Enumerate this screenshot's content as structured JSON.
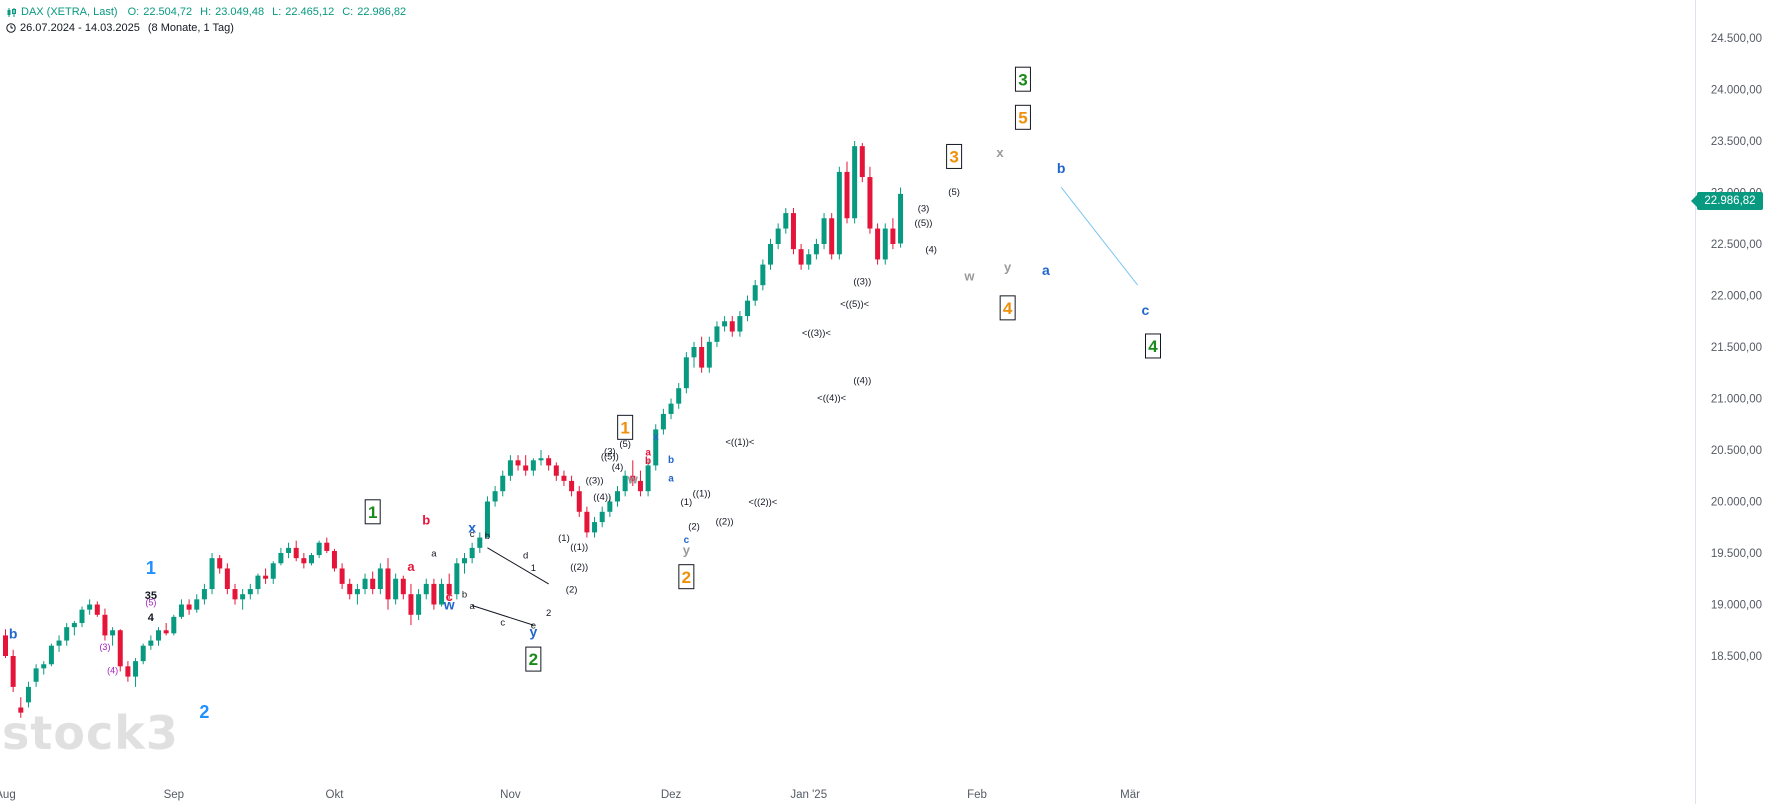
{
  "legend": {
    "symbol": "DAX (XETRA, Last)",
    "open_label": "O:",
    "open": "22.504,72",
    "high_label": "H:",
    "high": "23.049,48",
    "low_label": "L:",
    "low": "22.465,12",
    "close_label": "C:",
    "close": "22.986,82",
    "range": "26.07.2024 - 14.03.2025",
    "span": "(8 Monate, 1 Tag)"
  },
  "watermark": "stock3",
  "current_price_label": "22.986,82",
  "colors": {
    "up": "#089981",
    "down": "#e5153a",
    "green_label": "#1a8a1a",
    "orange_label": "#f0900a",
    "blue_label": "#2266cc",
    "red_label": "#e5153a",
    "grey_label": "#9a9a9a",
    "purple_label": "#a020c0",
    "sky_label": "#1e90ff",
    "projection": "#7cc6f2"
  },
  "chart_data": {
    "type": "candlestick",
    "title": "DAX (XETRA, Last)",
    "ylim": [
      18100,
      24800
    ],
    "xlabels": [
      {
        "label": "Aug",
        "day": 0
      },
      {
        "label": "Sep",
        "day": 22
      },
      {
        "label": "Okt",
        "day": 43
      },
      {
        "label": "Nov",
        "day": 66
      },
      {
        "label": "Dez",
        "day": 87
      },
      {
        "label": "Jan '25",
        "day": 105
      },
      {
        "label": "Feb",
        "day": 127
      },
      {
        "label": "Mär",
        "day": 147
      }
    ],
    "yticks": [
      "18.500,00",
      "19.000,00",
      "19.500,00",
      "20.000,00",
      "20.500,00",
      "21.000,00",
      "21.500,00",
      "22.000,00",
      "22.500,00",
      "23.000,00",
      "23.500,00",
      "24.000,00",
      "24.500,00"
    ],
    "ytick_values": [
      18500,
      19000,
      19500,
      20000,
      20500,
      21000,
      21500,
      22000,
      22500,
      23000,
      23500,
      24000,
      24500
    ],
    "last_close": 22986.82,
    "candles": [
      [
        18700,
        18760,
        18480,
        18500
      ],
      [
        18500,
        18560,
        18150,
        18200
      ],
      [
        18000,
        18100,
        17900,
        17950
      ],
      [
        18050,
        18250,
        18000,
        18200
      ],
      [
        18250,
        18420,
        18200,
        18380
      ],
      [
        18380,
        18450,
        18320,
        18420
      ],
      [
        18420,
        18620,
        18400,
        18600
      ],
      [
        18600,
        18700,
        18540,
        18650
      ],
      [
        18650,
        18820,
        18600,
        18780
      ],
      [
        18780,
        18840,
        18700,
        18820
      ],
      [
        18820,
        18980,
        18780,
        18950
      ],
      [
        18950,
        19050,
        18900,
        19000
      ],
      [
        19000,
        19030,
        18880,
        18900
      ],
      [
        18900,
        18960,
        18650,
        18700
      ],
      [
        18700,
        18780,
        18600,
        18750
      ],
      [
        18750,
        18760,
        18350,
        18400
      ],
      [
        18400,
        18450,
        18250,
        18300
      ],
      [
        18300,
        18480,
        18200,
        18450
      ],
      [
        18450,
        18620,
        18420,
        18600
      ],
      [
        18600,
        18700,
        18560,
        18650
      ],
      [
        18650,
        18780,
        18600,
        18750
      ],
      [
        18750,
        18820,
        18700,
        18720
      ],
      [
        18720,
        18900,
        18700,
        18880
      ],
      [
        18880,
        19050,
        18860,
        19000
      ],
      [
        19000,
        19050,
        18900,
        18950
      ],
      [
        18950,
        19100,
        18920,
        19050
      ],
      [
        19050,
        19200,
        19000,
        19150
      ],
      [
        19150,
        19500,
        19100,
        19450
      ],
      [
        19450,
        19480,
        19300,
        19350
      ],
      [
        19350,
        19400,
        19100,
        19150
      ],
      [
        19150,
        19200,
        19000,
        19050
      ],
      [
        19050,
        19150,
        18950,
        19100
      ],
      [
        19100,
        19200,
        19050,
        19150
      ],
      [
        19150,
        19300,
        19100,
        19280
      ],
      [
        19280,
        19350,
        19200,
        19250
      ],
      [
        19250,
        19420,
        19200,
        19400
      ],
      [
        19400,
        19550,
        19380,
        19500
      ],
      [
        19500,
        19600,
        19450,
        19550
      ],
      [
        19550,
        19620,
        19420,
        19450
      ],
      [
        19450,
        19500,
        19350,
        19400
      ],
      [
        19400,
        19500,
        19380,
        19480
      ],
      [
        19480,
        19620,
        19450,
        19600
      ],
      [
        19600,
        19650,
        19500,
        19520
      ],
      [
        19520,
        19540,
        19320,
        19350
      ],
      [
        19350,
        19400,
        19150,
        19200
      ],
      [
        19200,
        19250,
        19050,
        19100
      ],
      [
        19100,
        19200,
        19000,
        19150
      ],
      [
        19150,
        19300,
        19100,
        19250
      ],
      [
        19250,
        19320,
        19100,
        19150
      ],
      [
        19150,
        19400,
        19100,
        19350
      ],
      [
        19350,
        19450,
        18950,
        19050
      ],
      [
        19050,
        19300,
        19000,
        19250
      ],
      [
        19250,
        19280,
        19050,
        19100
      ],
      [
        19100,
        19200,
        18800,
        18900
      ],
      [
        18900,
        19150,
        18850,
        19100
      ],
      [
        19100,
        19250,
        19050,
        19200
      ],
      [
        19200,
        19250,
        18950,
        19000
      ],
      [
        19000,
        19250,
        18980,
        19200
      ],
      [
        19200,
        19300,
        19050,
        19100
      ],
      [
        19100,
        19450,
        19050,
        19400
      ],
      [
        19400,
        19500,
        19300,
        19450
      ],
      [
        19450,
        19600,
        19400,
        19550
      ],
      [
        19550,
        19700,
        19500,
        19650
      ],
      [
        19650,
        20050,
        19650,
        20000
      ],
      [
        20000,
        20150,
        19950,
        20100
      ],
      [
        20100,
        20300,
        20050,
        20250
      ],
      [
        20250,
        20450,
        20200,
        20400
      ],
      [
        20400,
        20450,
        20300,
        20350
      ],
      [
        20350,
        20450,
        20250,
        20300
      ],
      [
        20300,
        20420,
        20250,
        20400
      ],
      [
        20400,
        20500,
        20350,
        20420
      ],
      [
        20420,
        20450,
        20300,
        20350
      ],
      [
        20350,
        20380,
        20200,
        20250
      ],
      [
        20250,
        20300,
        20150,
        20200
      ],
      [
        20200,
        20250,
        20050,
        20100
      ],
      [
        20100,
        20150,
        19850,
        19900
      ],
      [
        19900,
        19950,
        19650,
        19700
      ],
      [
        19700,
        19850,
        19650,
        19800
      ],
      [
        19800,
        19950,
        19750,
        19900
      ],
      [
        19900,
        20050,
        19850,
        20000
      ],
      [
        20000,
        20150,
        19950,
        20100
      ],
      [
        20100,
        20300,
        20050,
        20250
      ],
      [
        20250,
        20400,
        20150,
        20200
      ],
      [
        20200,
        20300,
        20050,
        20100
      ],
      [
        20100,
        20400,
        20050,
        20350
      ],
      [
        20350,
        20750,
        20300,
        20700
      ],
      [
        20700,
        20900,
        20650,
        20850
      ],
      [
        20850,
        21000,
        20800,
        20950
      ],
      [
        20950,
        21150,
        20900,
        21100
      ],
      [
        21100,
        21450,
        21050,
        21400
      ],
      [
        21400,
        21550,
        21300,
        21500
      ],
      [
        21500,
        21600,
        21250,
        21300
      ],
      [
        21300,
        21600,
        21250,
        21550
      ],
      [
        21550,
        21750,
        21500,
        21700
      ],
      [
        21700,
        21800,
        21650,
        21750
      ],
      [
        21750,
        21800,
        21600,
        21650
      ],
      [
        21650,
        21850,
        21600,
        21800
      ],
      [
        21800,
        22000,
        21750,
        21950
      ],
      [
        21950,
        22150,
        21900,
        22100
      ],
      [
        22100,
        22350,
        22050,
        22300
      ],
      [
        22300,
        22550,
        22250,
        22500
      ],
      [
        22500,
        22700,
        22450,
        22650
      ],
      [
        22650,
        22850,
        22600,
        22800
      ],
      [
        22800,
        22850,
        22400,
        22450
      ],
      [
        22450,
        22500,
        22250,
        22300
      ],
      [
        22300,
        22450,
        22250,
        22400
      ],
      [
        22400,
        22550,
        22350,
        22500
      ],
      [
        22500,
        22800,
        22450,
        22750
      ],
      [
        22750,
        22800,
        22350,
        22400
      ],
      [
        22400,
        23250,
        22350,
        23200
      ],
      [
        23200,
        23300,
        22700,
        22750
      ],
      [
        22750,
        23500,
        22700,
        23450
      ],
      [
        23450,
        23480,
        23100,
        23150
      ],
      [
        23150,
        23250,
        22600,
        22650
      ],
      [
        22650,
        22700,
        22300,
        22350
      ],
      [
        22350,
        22700,
        22300,
        22650
      ],
      [
        22650,
        22750,
        22450,
        22500
      ],
      [
        22505,
        23049,
        22465,
        22987
      ]
    ],
    "annotations": [
      {
        "text": "b",
        "day": 1,
        "price": 18720,
        "style": "blue"
      },
      {
        "text": "(3)",
        "day": 13,
        "price": 18590,
        "style": "purple"
      },
      {
        "text": "(4)",
        "day": 14,
        "price": 18360,
        "style": "purple"
      },
      {
        "text": "4",
        "day": 19,
        "price": 18880,
        "style": "black"
      },
      {
        "text": "(5)",
        "day": 19,
        "price": 19020,
        "style": "purple"
      },
      {
        "text": "35",
        "day": 19,
        "price": 19090,
        "style": "black"
      },
      {
        "text": "1",
        "day": 19,
        "price": 19360,
        "style": "sky"
      },
      {
        "text": "2",
        "day": 26,
        "price": 17960,
        "style": "sky"
      },
      {
        "text": "1",
        "day": 48,
        "price": 19900,
        "style": "green-box"
      },
      {
        "text": "b",
        "day": 55,
        "price": 19820,
        "style": "red"
      },
      {
        "text": "a",
        "day": 53,
        "price": 19370,
        "style": "red"
      },
      {
        "text": "a",
        "day": 56,
        "price": 19500,
        "style": "black-small"
      },
      {
        "text": "c",
        "day": 58,
        "price": 19080,
        "style": "red"
      },
      {
        "text": "w",
        "day": 58,
        "price": 19000,
        "style": "blue"
      },
      {
        "text": "x",
        "day": 61,
        "price": 19750,
        "style": "blue"
      },
      {
        "text": "c",
        "day": 61,
        "price": 19690,
        "style": "black-small"
      },
      {
        "text": "b",
        "day": 60,
        "price": 19100,
        "style": "black-small"
      },
      {
        "text": "a",
        "day": 61,
        "price": 18990,
        "style": "black-small"
      },
      {
        "text": "b",
        "day": 63,
        "price": 19670,
        "style": "black-small"
      },
      {
        "text": "c",
        "day": 65,
        "price": 18830,
        "style": "black-small"
      },
      {
        "text": "d",
        "day": 68,
        "price": 19480,
        "style": "black-small"
      },
      {
        "text": "1",
        "day": 69,
        "price": 19360,
        "style": "black-small"
      },
      {
        "text": "e",
        "day": 69,
        "price": 18800,
        "style": "black-small"
      },
      {
        "text": "y",
        "day": 69,
        "price": 18740,
        "style": "blue"
      },
      {
        "text": "2",
        "day": 71,
        "price": 18920,
        "style": "black-small"
      },
      {
        "text": "2",
        "day": 69,
        "price": 18470,
        "style": "green-box"
      },
      {
        "text": "(1)",
        "day": 73,
        "price": 19650,
        "style": "black-small"
      },
      {
        "text": "((1))",
        "day": 75,
        "price": 19560,
        "style": "black-small"
      },
      {
        "text": "((2))",
        "day": 75,
        "price": 19370,
        "style": "black-small"
      },
      {
        "text": "(2)",
        "day": 74,
        "price": 19150,
        "style": "black-small"
      },
      {
        "text": "((3))",
        "day": 77,
        "price": 20210,
        "style": "black-small"
      },
      {
        "text": "((4))",
        "day": 78,
        "price": 20050,
        "style": "black-small"
      },
      {
        "text": "1",
        "day": 81,
        "price": 20720,
        "style": "orange-box"
      },
      {
        "text": "(5)",
        "day": 81,
        "price": 20560,
        "style": "black-small"
      },
      {
        "text": "(3)",
        "day": 79,
        "price": 20490,
        "style": "black-small"
      },
      {
        "text": "((5))",
        "day": 79,
        "price": 20440,
        "style": "black-small"
      },
      {
        "text": "(4)",
        "day": 80,
        "price": 20340,
        "style": "black-small"
      },
      {
        "text": "w",
        "day": 82,
        "price": 20220,
        "style": "grey"
      },
      {
        "text": "x",
        "day": 85,
        "price": 20630,
        "style": "blue-small"
      },
      {
        "text": "a",
        "day": 84,
        "price": 20480,
        "style": "red-small"
      },
      {
        "text": "b",
        "day": 84,
        "price": 20400,
        "style": "red-small"
      },
      {
        "text": "b",
        "day": 87,
        "price": 20410,
        "style": "blue-small"
      },
      {
        "text": "a",
        "day": 87,
        "price": 20230,
        "style": "blue-small"
      },
      {
        "text": "(1)",
        "day": 89,
        "price": 20000,
        "style": "black-small"
      },
      {
        "text": "((1))",
        "day": 91,
        "price": 20080,
        "style": "black-small"
      },
      {
        "text": "(2)",
        "day": 90,
        "price": 19760,
        "style": "black-small"
      },
      {
        "text": "((2))",
        "day": 94,
        "price": 19810,
        "style": "black-small"
      },
      {
        "text": "c",
        "day": 89,
        "price": 19630,
        "style": "blue-small"
      },
      {
        "text": "y",
        "day": 89,
        "price": 19530,
        "style": "grey"
      },
      {
        "text": "2",
        "day": 89,
        "price": 19270,
        "style": "orange-box"
      },
      {
        "text": "<((1))<",
        "day": 96,
        "price": 20580,
        "style": "black-small"
      },
      {
        "text": "<((2))<",
        "day": 99,
        "price": 20000,
        "style": "black-small"
      },
      {
        "text": "<((3))<",
        "day": 106,
        "price": 21640,
        "style": "black-small"
      },
      {
        "text": "<((4))<",
        "day": 108,
        "price": 21010,
        "style": "black-small"
      },
      {
        "text": "((4))",
        "day": 112,
        "price": 21180,
        "style": "black-small"
      },
      {
        "text": "<((5))<",
        "day": 111,
        "price": 21920,
        "style": "black-small"
      },
      {
        "text": "((3))",
        "day": 112,
        "price": 22140,
        "style": "black-small"
      },
      {
        "text": "(3)",
        "day": 120,
        "price": 22850,
        "style": "black-small"
      },
      {
        "text": "((5))",
        "day": 120,
        "price": 22710,
        "style": "black-small"
      },
      {
        "text": "(4)",
        "day": 121,
        "price": 22450,
        "style": "black-small"
      },
      {
        "text": "(5)",
        "day": 124,
        "price": 23010,
        "style": "black-small"
      },
      {
        "text": "3",
        "day": 124,
        "price": 23350,
        "style": "orange-box"
      },
      {
        "text": "w",
        "day": 126,
        "price": 22190,
        "style": "grey"
      },
      {
        "text": "x",
        "day": 130,
        "price": 23390,
        "style": "grey"
      },
      {
        "text": "y",
        "day": 131,
        "price": 22280,
        "style": "grey"
      },
      {
        "text": "4",
        "day": 131,
        "price": 21880,
        "style": "orange-box"
      },
      {
        "text": "5",
        "day": 133,
        "price": 23730,
        "style": "orange-box"
      },
      {
        "text": "3",
        "day": 133,
        "price": 24100,
        "style": "green-box"
      },
      {
        "text": "a",
        "day": 136,
        "price": 22250,
        "style": "blue"
      },
      {
        "text": "b",
        "day": 138,
        "price": 23240,
        "style": "blue"
      },
      {
        "text": "c",
        "day": 149,
        "price": 21860,
        "style": "blue"
      },
      {
        "text": "4",
        "day": 150,
        "price": 21510,
        "style": "green-box"
      }
    ],
    "lines": [
      {
        "from": [
          61,
          18990
        ],
        "to": [
          69,
          18800
        ],
        "style": "black"
      },
      {
        "from": [
          63,
          19550
        ],
        "to": [
          71,
          19200
        ],
        "style": "black"
      },
      {
        "from": [
          138,
          23050
        ],
        "to": [
          148,
          22100
        ],
        "style": "projection"
      }
    ]
  }
}
